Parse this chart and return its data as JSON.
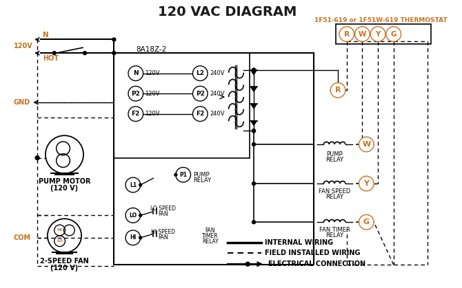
{
  "title": "120 VAC DIAGRAM",
  "title_color": "#1a1a1a",
  "title_fontsize": 14,
  "thermostat_label": "1F51-619 or 1F51W-619 THERMOSTAT",
  "thermostat_label_color": "#c87020",
  "control_box_label": "8A18Z-2",
  "pump_motor_label": "PUMP MOTOR",
  "pump_motor_label2": "(120 V)",
  "fan_label": "2-SPEED FAN",
  "fan_label2": "(120 V)",
  "bg_color": "#ffffff",
  "line_color": "#000000",
  "orange_color": "#c87020",
  "terminal_labels_left": [
    "N",
    "P2",
    "F2"
  ],
  "terminal_labels_right": [
    "L2",
    "P2",
    "F2"
  ],
  "voltage_left": [
    "120V",
    "120V",
    "120V"
  ],
  "voltage_right": [
    "240V",
    "240V",
    "240V"
  ],
  "thermostat_terminals": [
    "R",
    "W",
    "Y",
    "G"
  ],
  "legend_internal": "INTERNAL WIRING",
  "legend_field": "FIELD INSTALLED WIRING",
  "legend_elec": "ELECTRICAL CONNECTION"
}
